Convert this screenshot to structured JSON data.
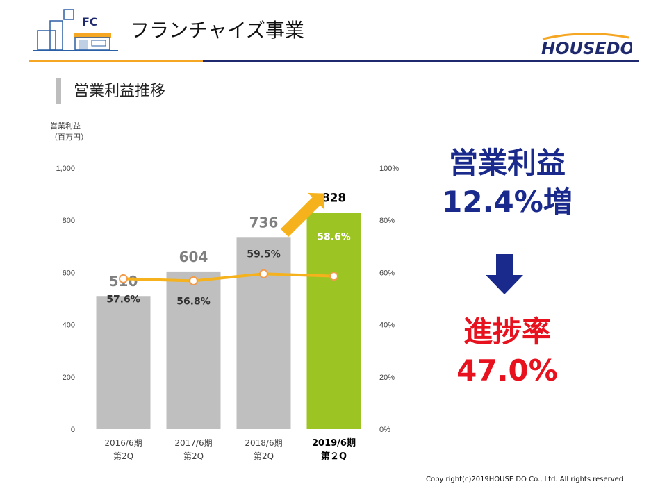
{
  "header": {
    "title": "フランチャイズ事業",
    "fc_label": "FC",
    "brand_logo_text": "HOUSEDO"
  },
  "section": {
    "title": "営業利益推移"
  },
  "axis_unit": {
    "line1": "営業利益",
    "line2": "（百万円）"
  },
  "kpi": {
    "profit_label": "営業利益",
    "profit_value": "12.4%増",
    "progress_label": "進捗率",
    "progress_value": "47.0%"
  },
  "copyright": "Copy right(c)2019HOUSE DO Co., Ltd. All rights reserved",
  "colors": {
    "bar_gray": "#bfbfbf",
    "bar_green": "#9cc524",
    "line_orange": "#f5b21c",
    "navy": "#1a2a8c",
    "red": "#e8111e"
  },
  "chart_data": {
    "type": "bar",
    "categories": [
      [
        "2016/6期",
        "第2Q"
      ],
      [
        "2017/6期",
        "第2Q"
      ],
      [
        "2018/6期",
        "第2Q"
      ],
      [
        "2019/6期",
        "第２Q"
      ]
    ],
    "series": [
      {
        "type": "bar",
        "values": [
          510,
          604,
          736,
          828
        ],
        "labels": [
          "510",
          "604",
          "736",
          "828"
        ]
      },
      {
        "type": "line",
        "axis": "right",
        "values": [
          57.6,
          56.8,
          59.5,
          58.6
        ],
        "labels": [
          "57.6%",
          "56.8%",
          "59.5%",
          "58.6%"
        ]
      }
    ],
    "highlight_index": 3,
    "ylim": [
      0,
      1000
    ],
    "yticks": [
      "0",
      "200",
      "400",
      "600",
      "800",
      "1,000"
    ],
    "y2lim": [
      0,
      100
    ],
    "y2ticks": [
      "0%",
      "20%",
      "40%",
      "60%",
      "80%",
      "100%"
    ],
    "grid": false
  }
}
